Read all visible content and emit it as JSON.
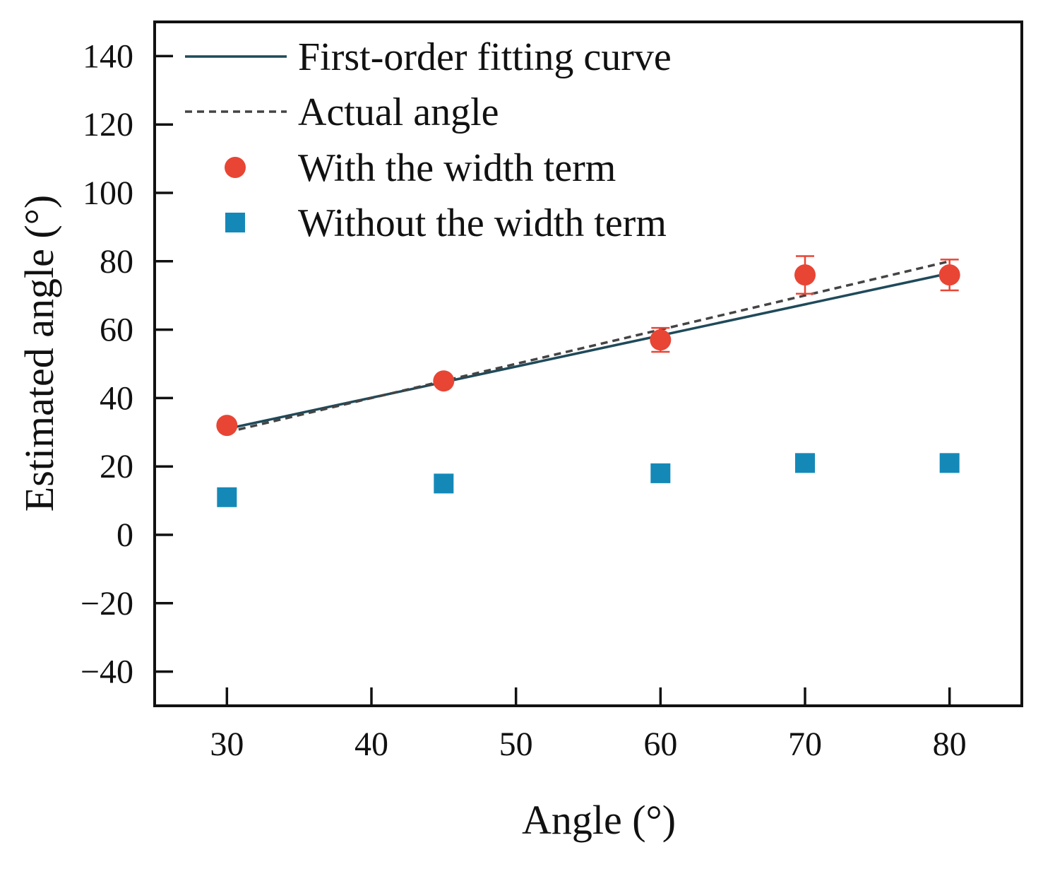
{
  "chart_data": {
    "type": "scatter",
    "xlabel": "Angle (°)",
    "ylabel": "Estimated angle (°)",
    "xlim": [
      25,
      85
    ],
    "ylim": [
      -50,
      150
    ],
    "x_ticks": [
      30,
      40,
      50,
      60,
      70,
      80
    ],
    "y_ticks": [
      -40,
      -20,
      0,
      20,
      40,
      60,
      80,
      100,
      120,
      140
    ],
    "x_tick_labels": [
      "30",
      "40",
      "50",
      "60",
      "70",
      "80"
    ],
    "y_tick_labels": [
      "−40",
      "−20",
      "0",
      "20",
      "40",
      "60",
      "80",
      "100",
      "120",
      "140"
    ],
    "grid": false,
    "legend_position": "top-left",
    "series": [
      {
        "name": "First-order fitting curve",
        "kind": "line",
        "style": "solid",
        "color": "#1f4a5a",
        "x": [
          30,
          80
        ],
        "y": [
          31.0,
          76.5
        ]
      },
      {
        "name": "Actual angle",
        "kind": "line",
        "style": "dashed",
        "color": "#444444",
        "x": [
          30,
          80
        ],
        "y": [
          30,
          80
        ]
      },
      {
        "name": "With the width term",
        "kind": "scatter",
        "marker": "circle",
        "color": "#e84535",
        "x": [
          30,
          45,
          60,
          70,
          80
        ],
        "y": [
          32,
          45,
          57,
          76,
          76
        ],
        "error": [
          1.0,
          1.0,
          3.5,
          5.5,
          4.5
        ]
      },
      {
        "name": "Without the width term",
        "kind": "scatter",
        "marker": "square",
        "color": "#1489b8",
        "x": [
          30,
          45,
          60,
          70,
          80
        ],
        "y": [
          11,
          15,
          18,
          21,
          21
        ]
      }
    ]
  }
}
